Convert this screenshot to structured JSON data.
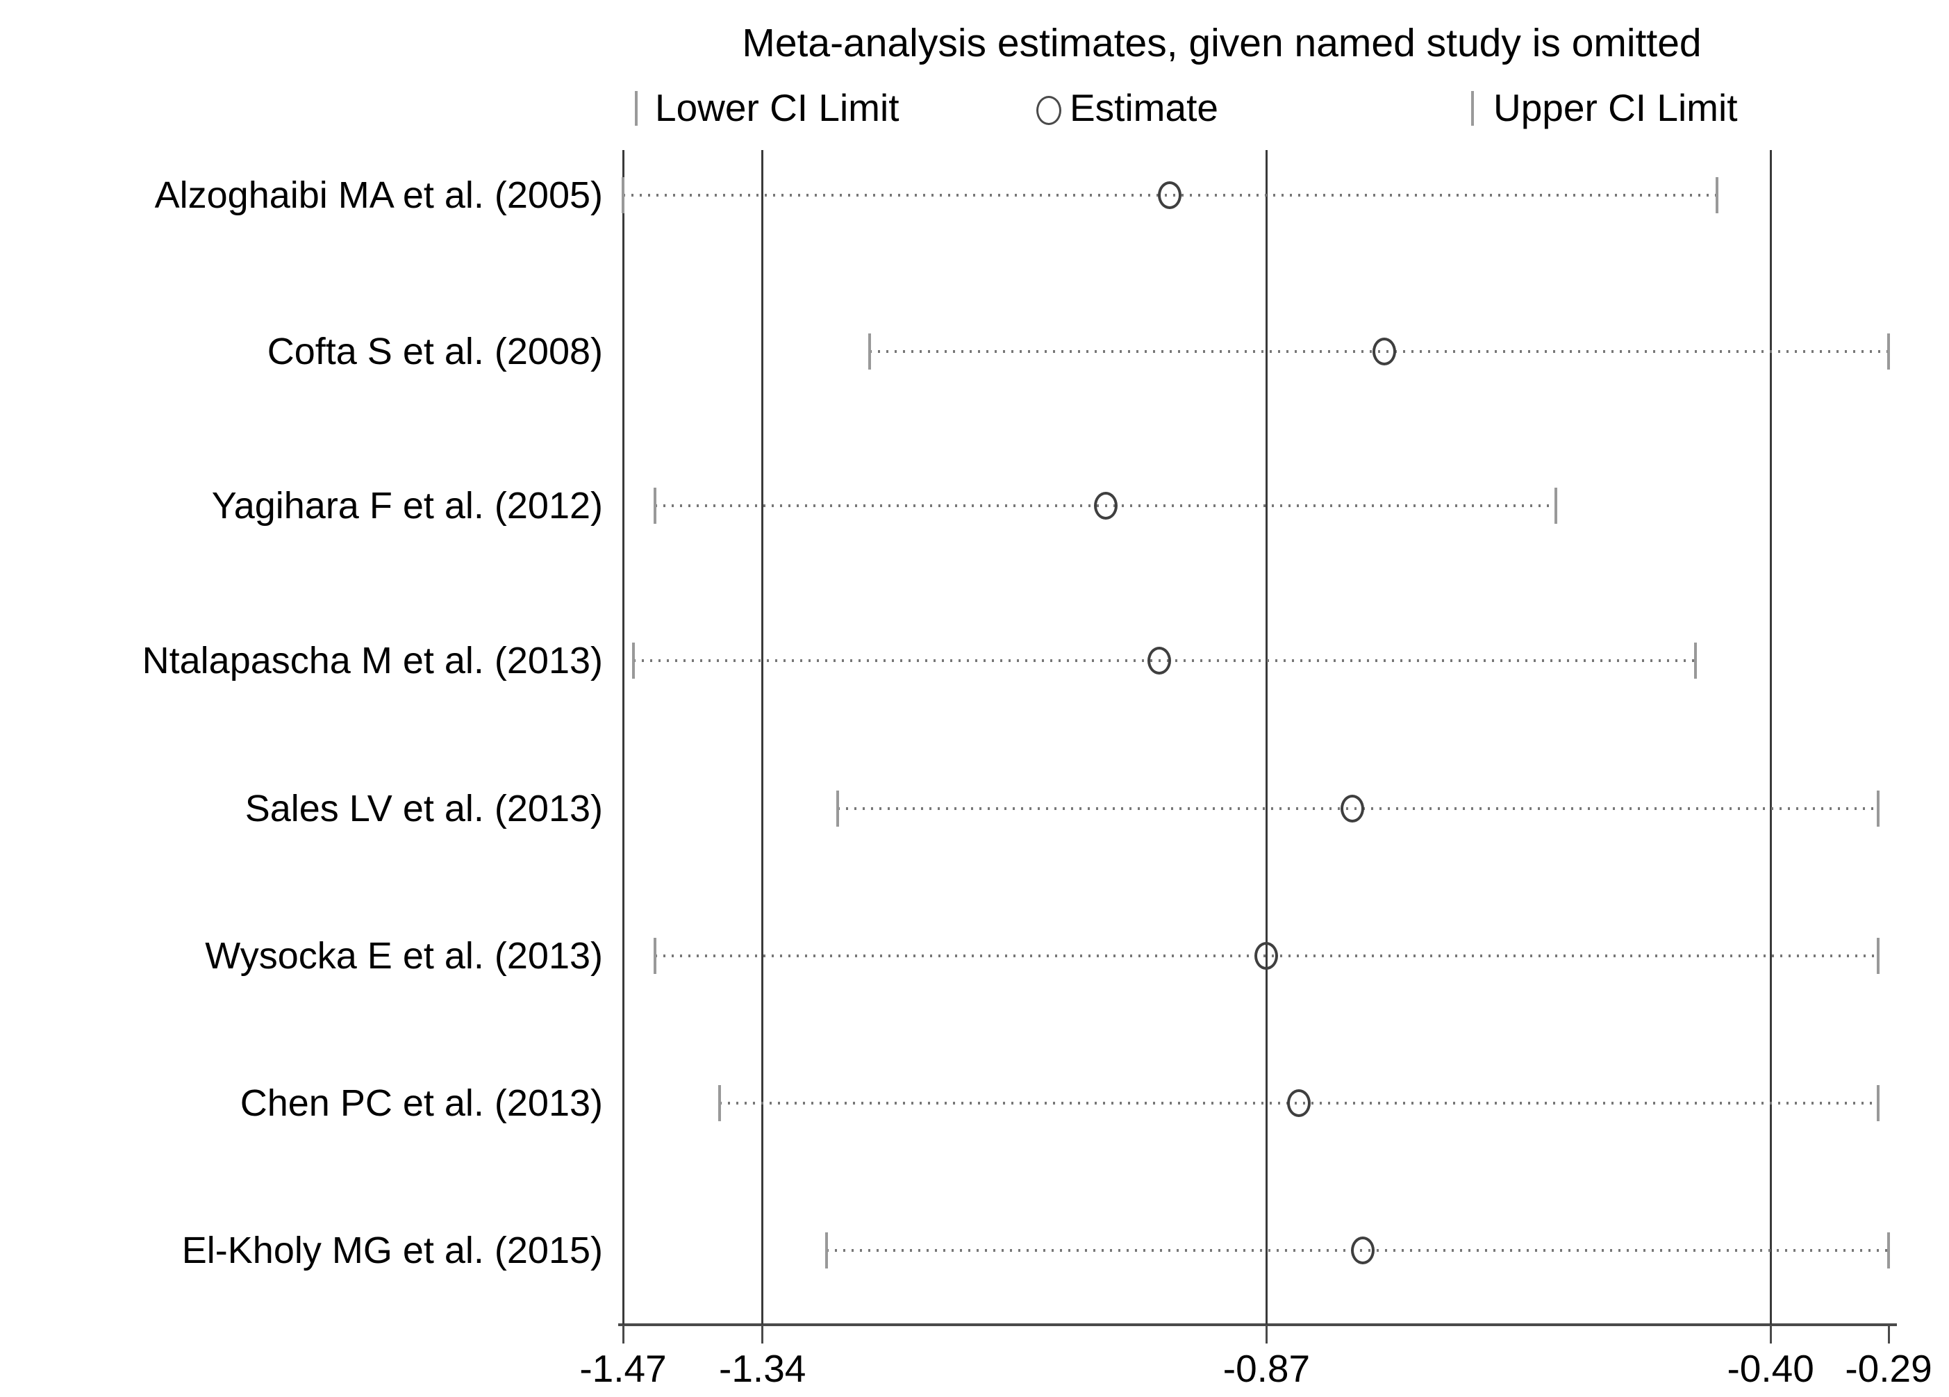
{
  "figure": {
    "title": "Meta-analysis estimates, given named study is omitted",
    "legend": {
      "lower_label": "Lower CI Limit",
      "estimate_label": "Estimate",
      "upper_label": "Upper CI Limit"
    }
  },
  "chart_data": {
    "type": "scatter",
    "subtype": "leave-one-out-forest-plot",
    "title": "Meta-analysis estimates, given named study is omitted",
    "xlabel": "",
    "ylabel": "",
    "xlim": [
      -1.47,
      -0.29
    ],
    "x_ticks": [
      -1.47,
      -1.34,
      -0.87,
      -0.4,
      -0.29
    ],
    "x_tick_labels": [
      "-1.47",
      "-1.34",
      "-0.87",
      "-0.40",
      "-0.29"
    ],
    "reference_lines": {
      "axis_min": -1.47,
      "overall_lower_ci": -1.34,
      "overall_estimate": -0.87,
      "overall_upper_ci": -0.4,
      "axis_max": -0.29
    },
    "legend_entries": [
      "Lower CI Limit",
      "Estimate",
      "Upper CI Limit"
    ],
    "grid": false,
    "studies": [
      {
        "label": "Alzoghaibi MA et al. (2005)",
        "lower": -1.47,
        "estimate": -0.96,
        "upper": -0.45
      },
      {
        "label": "Cofta S et al. (2008)",
        "lower": -1.24,
        "estimate": -0.76,
        "upper": -0.29
      },
      {
        "label": "Yagihara F et al. (2012)",
        "lower": -1.44,
        "estimate": -1.02,
        "upper": -0.6
      },
      {
        "label": "Ntalapascha M et al. (2013)",
        "lower": -1.46,
        "estimate": -0.97,
        "upper": -0.47
      },
      {
        "label": "Sales LV et al. (2013)",
        "lower": -1.27,
        "estimate": -0.79,
        "upper": -0.3
      },
      {
        "label": "Wysocka E et al. (2013)",
        "lower": -1.44,
        "estimate": -0.87,
        "upper": -0.3
      },
      {
        "label": "Chen PC et al. (2013)",
        "lower": -1.38,
        "estimate": -0.84,
        "upper": -0.3
      },
      {
        "label": "El-Kholy MG et al. (2015)",
        "lower": -1.28,
        "estimate": -0.78,
        "upper": -0.29
      }
    ],
    "colors": {
      "reference_line": "#3a3a3a",
      "axis_line": "#4a4a4a",
      "dotted_ci_line": "#777777",
      "ci_tick_marker": "#999999",
      "estimate_circle": "#3f3f3f",
      "text": "#000000",
      "background": "#ffffff"
    }
  }
}
